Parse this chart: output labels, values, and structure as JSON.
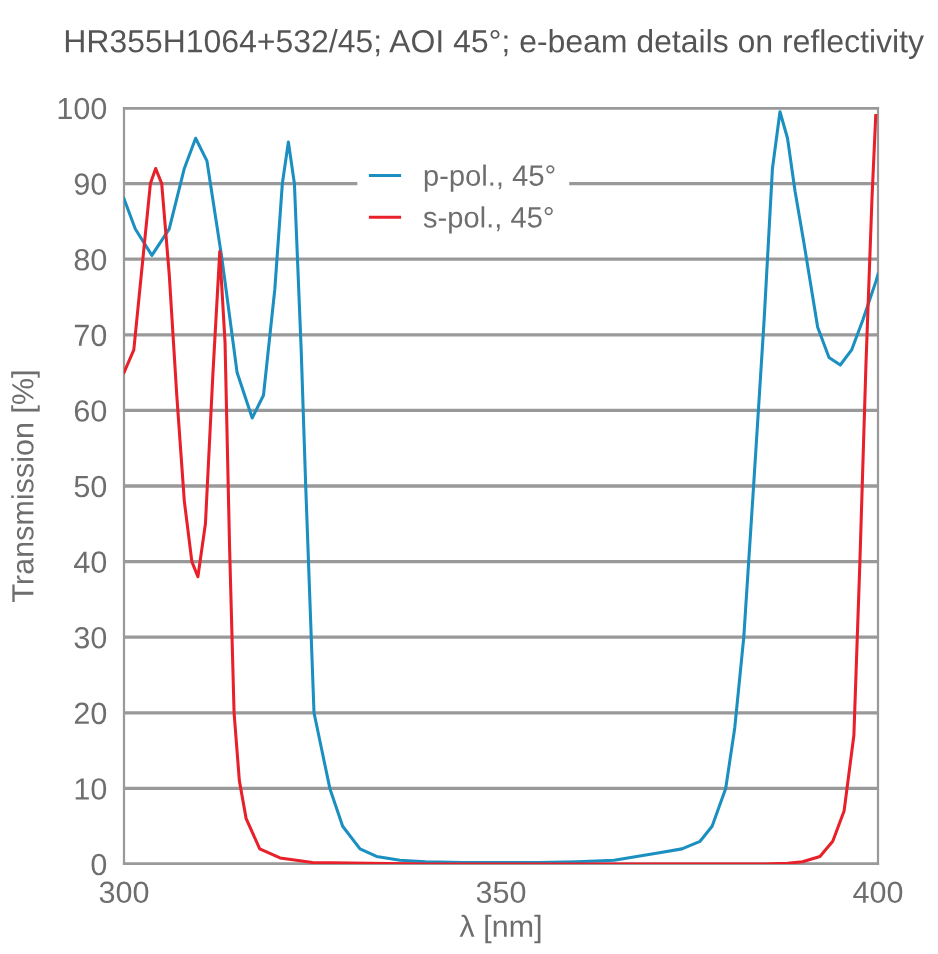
{
  "chart_data": {
    "type": "line",
    "title": "HR355H1064+532/45; AOI 45°; e-beam details on reflectivity",
    "xlabel": "λ [nm]",
    "ylabel": "Transmission [%]",
    "xlim": [
      300,
      400
    ],
    "ylim": [
      0,
      100
    ],
    "xticks": [
      300,
      350,
      400
    ],
    "yticks": [
      0,
      10,
      20,
      30,
      40,
      50,
      60,
      70,
      80,
      90,
      100
    ],
    "grid": "y",
    "legend": "top",
    "marker": "none",
    "line_style": "solid",
    "series": [
      {
        "name": "p-pol., 45°",
        "color": "#1a8fc0",
        "x": [
          300,
          301.5,
          303.7,
          306,
          308,
          309.5,
          311,
          313,
          315,
          317,
          318.5,
          320,
          321,
          321.8,
          322.6,
          323.5,
          324.1,
          325.2,
          327.3,
          329,
          331.3,
          333.5,
          336.6,
          340,
          345,
          350,
          355,
          360,
          365,
          368,
          371,
          374,
          376.4,
          378,
          379.8,
          381,
          382.2,
          383.5,
          384.9,
          386,
          387,
          388,
          389,
          390.2,
          392,
          393.5,
          395,
          396.5,
          398,
          399.7,
          400
        ],
        "values": [
          88,
          84,
          80.5,
          84,
          92,
          96,
          93,
          80,
          65,
          59,
          62,
          76,
          90,
          95.5,
          90,
          68,
          50,
          20,
          10,
          5,
          2,
          1,
          0.5,
          0.3,
          0.2,
          0.2,
          0.2,
          0.3,
          0.5,
          1,
          1.5,
          2,
          3,
          5,
          10,
          18,
          30,
          50,
          72,
          92,
          99.5,
          96,
          89,
          82,
          71,
          67,
          66,
          68,
          72,
          77,
          78
        ]
      },
      {
        "name": "s-pol., 45°",
        "color": "#e8202a",
        "x": [
          300,
          301.3,
          302.5,
          303.5,
          304.2,
          305,
          306,
          307,
          308,
          309,
          309.8,
          310.8,
          311.8,
          312.7,
          313.4,
          314,
          314.6,
          315.3,
          316.2,
          318,
          320.7,
          325,
          340,
          360,
          380,
          385,
          388,
          390,
          392.3,
          394,
          395.5,
          396.8,
          397.6,
          398.4,
          399.2,
          399.7
        ],
        "values": [
          65,
          68,
          80,
          90,
          92,
          90,
          78,
          62,
          48,
          40,
          38,
          45,
          65,
          81,
          69,
          42,
          20,
          11,
          6,
          2,
          0.8,
          0.2,
          0,
          0,
          0,
          0,
          0.1,
          0.3,
          1,
          3,
          7,
          17,
          40,
          66,
          88,
          99
        ]
      }
    ]
  }
}
